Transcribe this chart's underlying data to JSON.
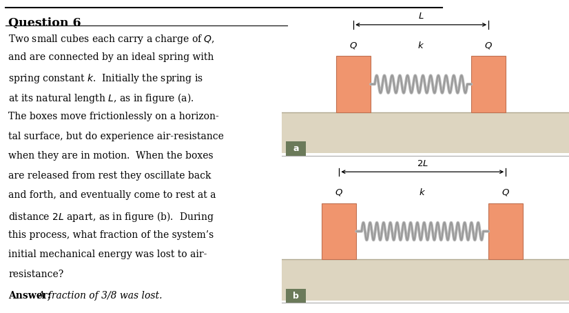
{
  "title": "Question 6",
  "body_lines": [
    "Two small cubes each carry a charge of $Q$,",
    "and are connected by an ideal spring with",
    "spring constant $k$.  Initially the spring is",
    "at its natural length $L$, as in figure (a).",
    "The boxes move frictionlessly on a horizon-",
    "tal surface, but do experience air-resistance",
    "when they are in motion.  When the boxes",
    "are released from rest they oscillate back",
    "and forth, and eventually come to rest at a",
    "distance $2L$ apart, as in figure (b).  During",
    "this process, what fraction of the system’s",
    "initial mechanical energy was lost to air-",
    "resistance?"
  ],
  "answer_bold": "Answer:",
  "answer_italic": " A fraction of 3/8 was lost.",
  "bg_color": "#ffffff",
  "box_color": "#f0956e",
  "box_edge_color": "#c07050",
  "ground_color": "#ddd5c0",
  "ground_edge_color": "#b0a890",
  "spring_color": "#999999",
  "spring_highlight": "#cccccc",
  "label_bg": "#6b7a5a",
  "separator_color": "#aaaaaa",
  "top_line_color": "#000000",
  "title_line_color": "#000000"
}
